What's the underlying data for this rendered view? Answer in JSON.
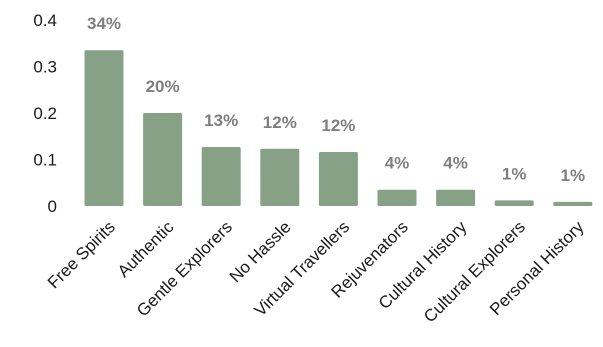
{
  "chart_data": {
    "type": "bar",
    "categories": [
      "Free Spirits",
      "Authentic",
      "Gentle Explorers",
      "No Hassle",
      "Virtual Travellers",
      "Rejuvenators",
      "Cultural History",
      "Cultural Explorers",
      "Personal History"
    ],
    "values": [
      0.335,
      0.2,
      0.127,
      0.123,
      0.116,
      0.035,
      0.035,
      0.012,
      0.009
    ],
    "data_labels": [
      "34%",
      "20%",
      "13%",
      "12%",
      "12%",
      "4%",
      "4%",
      "1%",
      "1%"
    ],
    "yticks": [
      "0",
      "0.1",
      "0.2",
      "0.3",
      "0.4"
    ],
    "ylim": [
      0,
      0.4
    ],
    "grid": false,
    "bar_color": "#87a187",
    "label_color": "#7f7f7f",
    "title": "",
    "xlabel": "",
    "ylabel": ""
  }
}
